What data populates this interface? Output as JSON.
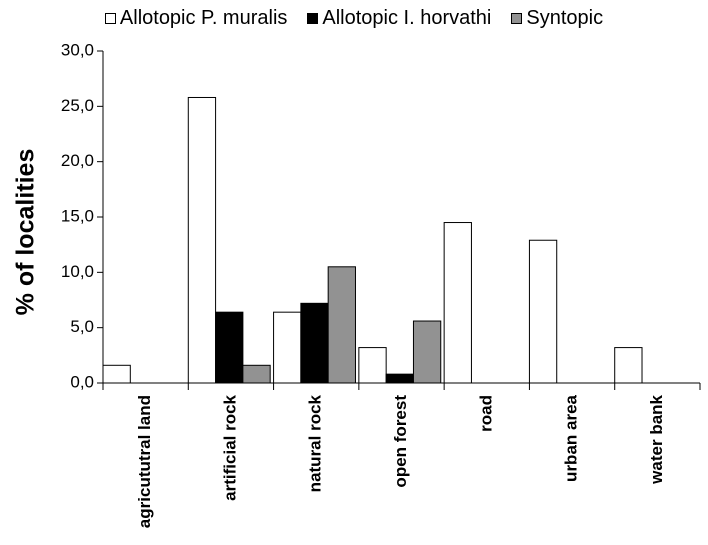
{
  "chart_data": {
    "type": "bar",
    "categories": [
      "agricututral land",
      "artificial rock",
      "natural rock",
      "open forest",
      "road",
      "urban area",
      "water bank"
    ],
    "series": [
      {
        "name": "Allotopic P. muralis",
        "values": [
          1.6,
          25.8,
          6.4,
          3.2,
          14.5,
          12.9,
          3.2
        ],
        "color": "#ffffff"
      },
      {
        "name": "Allotopic I. horvathi",
        "values": [
          0,
          6.4,
          7.2,
          0.8,
          0,
          0,
          0
        ],
        "color": "#000000"
      },
      {
        "name": "Syntopic",
        "values": [
          0,
          1.6,
          10.5,
          5.6,
          0,
          0,
          0
        ],
        "color": "#929292"
      }
    ],
    "yticks": [
      "0,0",
      "5,0",
      "10,0",
      "15,0",
      "20,0",
      "25,0",
      "30,0"
    ],
    "ylabel": "% of localities",
    "xlabel": "",
    "title": "",
    "ylim": [
      0,
      30
    ],
    "grid": false,
    "legend_position": "top"
  }
}
